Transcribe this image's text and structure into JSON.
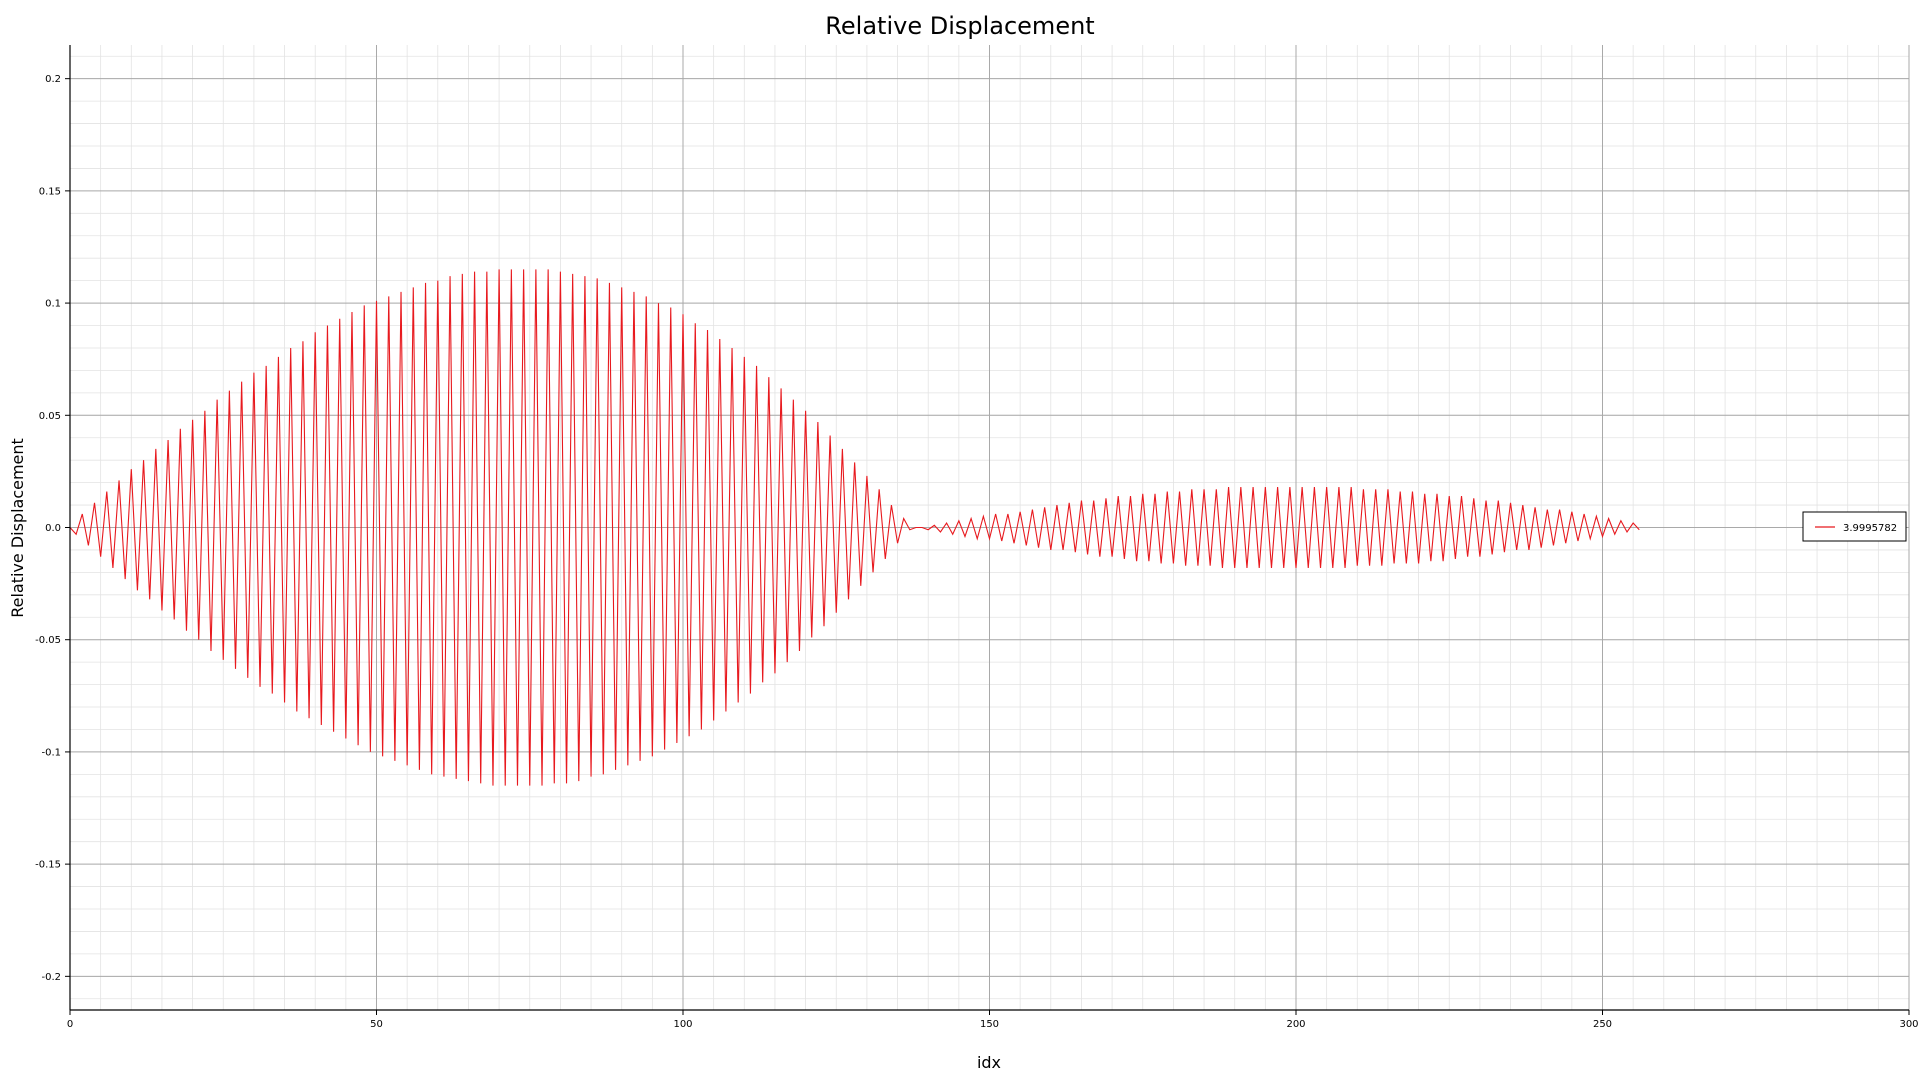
{
  "chart_data": {
    "type": "line",
    "title": "Relative Displacement",
    "xlabel": "idx",
    "ylabel": "Relative Displacement",
    "xlim": [
      0,
      300
    ],
    "ylim": [
      -0.215,
      0.215
    ],
    "xticks": [
      0,
      50,
      100,
      150,
      200,
      250,
      300
    ],
    "xtick_labels": [
      "0",
      "50",
      "100",
      "150",
      "200",
      "250",
      "300"
    ],
    "yticks": [
      0.2,
      0.15,
      0.1,
      0.05,
      0.0,
      -0.05,
      -0.1,
      -0.15,
      -0.2
    ],
    "ytick_labels": [
      "0.2",
      "0.15",
      "0.1",
      "0.05",
      "0.0",
      "-0.05",
      "-0.1",
      "-0.15",
      "-0.2"
    ],
    "grid": true,
    "legend_position": "right",
    "series": [
      {
        "name": "3.9995782",
        "color": "#e8191e",
        "x_start": 0,
        "x_step": 1,
        "values": [
          0,
          -0.003,
          0.006,
          -0.008,
          0.011,
          -0.013,
          0.016,
          -0.018,
          0.021,
          -0.023,
          0.026,
          -0.028,
          0.03,
          -0.032,
          0.035,
          -0.037,
          0.039,
          -0.041,
          0.044,
          -0.046,
          0.048,
          -0.05,
          0.052,
          -0.055,
          0.057,
          -0.059,
          0.061,
          -0.063,
          0.065,
          -0.067,
          0.069,
          -0.071,
          0.072,
          -0.074,
          0.076,
          -0.078,
          0.08,
          -0.082,
          0.083,
          -0.085,
          0.087,
          -0.088,
          0.09,
          -0.091,
          0.093,
          -0.094,
          0.096,
          -0.097,
          0.099,
          -0.1,
          0.101,
          -0.102,
          0.103,
          -0.104,
          0.105,
          -0.106,
          0.107,
          -0.108,
          0.109,
          -0.11,
          0.11,
          -0.111,
          0.112,
          -0.112,
          0.113,
          -0.113,
          0.114,
          -0.114,
          0.114,
          -0.115,
          0.115,
          -0.115,
          0.115,
          -0.115,
          0.115,
          -0.115,
          0.115,
          -0.115,
          0.115,
          -0.114,
          0.114,
          -0.114,
          0.113,
          -0.113,
          0.112,
          -0.111,
          0.111,
          -0.11,
          0.109,
          -0.108,
          0.107,
          -0.106,
          0.105,
          -0.104,
          0.103,
          -0.102,
          0.1,
          -0.099,
          0.098,
          -0.096,
          0.095,
          -0.093,
          0.091,
          -0.09,
          0.088,
          -0.086,
          0.084,
          -0.082,
          0.08,
          -0.078,
          0.076,
          -0.074,
          0.072,
          -0.069,
          0.067,
          -0.065,
          0.062,
          -0.06,
          0.057,
          -0.055,
          0.052,
          -0.049,
          0.047,
          -0.044,
          0.041,
          -0.038,
          0.035,
          -0.032,
          0.029,
          -0.026,
          0.023,
          -0.02,
          0.017,
          -0.014,
          0.01,
          -0.007,
          0.004,
          -0.001,
          0.0,
          0.0,
          -0.001,
          0.001,
          -0.002,
          0.002,
          -0.003,
          0.003,
          -0.004,
          0.004,
          -0.005,
          0.005,
          -0.005,
          0.006,
          -0.006,
          0.006,
          -0.007,
          0.007,
          -0.008,
          0.008,
          -0.009,
          0.009,
          -0.01,
          0.01,
          -0.01,
          0.011,
          -0.011,
          0.012,
          -0.012,
          0.012,
          -0.013,
          0.013,
          -0.013,
          0.014,
          -0.014,
          0.014,
          -0.015,
          0.015,
          -0.015,
          0.015,
          -0.016,
          0.016,
          -0.016,
          0.016,
          -0.017,
          0.017,
          -0.017,
          0.017,
          -0.017,
          0.017,
          -0.018,
          0.018,
          -0.018,
          0.018,
          -0.018,
          0.018,
          -0.018,
          0.018,
          -0.018,
          0.018,
          -0.018,
          0.018,
          -0.018,
          0.018,
          -0.018,
          0.018,
          -0.018,
          0.018,
          -0.018,
          0.018,
          -0.018,
          0.018,
          -0.017,
          0.017,
          -0.017,
          0.017,
          -0.017,
          0.017,
          -0.016,
          0.016,
          -0.016,
          0.016,
          -0.016,
          0.015,
          -0.015,
          0.015,
          -0.015,
          0.014,
          -0.014,
          0.014,
          -0.013,
          0.013,
          -0.013,
          0.012,
          -0.012,
          0.012,
          -0.011,
          0.011,
          -0.01,
          0.01,
          -0.01,
          0.009,
          -0.009,
          0.008,
          -0.008,
          0.008,
          -0.007,
          0.007,
          -0.006,
          0.006,
          -0.005,
          0.005,
          -0.004,
          0.004,
          -0.003,
          0.003,
          -0.002,
          0.002,
          -0.001
        ]
      }
    ]
  }
}
